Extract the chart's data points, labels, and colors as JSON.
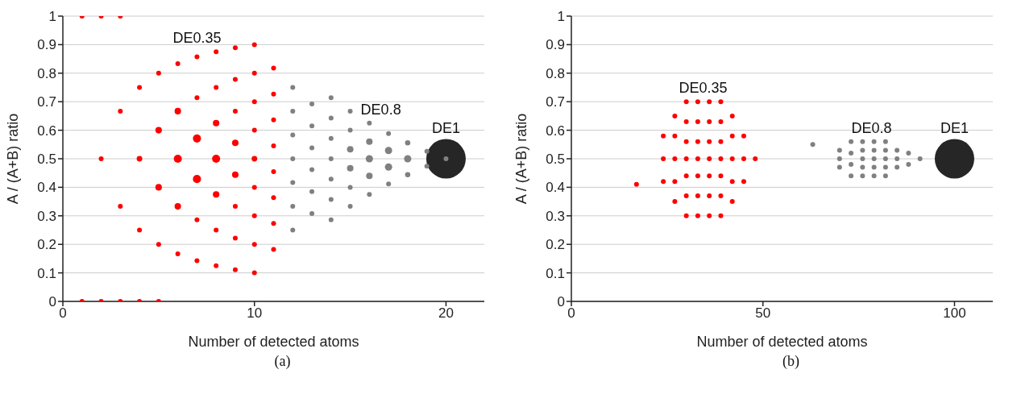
{
  "chart_data": [
    {
      "type": "bubble",
      "xlabel": "Number of detected atoms",
      "ylabel": "A / (A+B) ratio",
      "annotations": [
        "(a)"
      ],
      "xlim": [
        0,
        22
      ],
      "xticks": [
        0,
        10,
        20
      ],
      "ylim": [
        0,
        1
      ],
      "yticks": [
        0,
        0.1,
        0.2,
        0.3,
        0.4,
        0.5,
        0.6,
        0.7,
        0.8,
        0.9,
        1
      ],
      "grid": "y",
      "series": [
        {
          "name": "DE0.35",
          "color": "#ff0000",
          "x": [
            1,
            1,
            2,
            2,
            2,
            3,
            3,
            3,
            3,
            4,
            4,
            4,
            4,
            5,
            5,
            5,
            5,
            5,
            6,
            6,
            6,
            6,
            6,
            7,
            7,
            7,
            7,
            7,
            7,
            8,
            8,
            8,
            8,
            8,
            8,
            8,
            9,
            9,
            9,
            9,
            9,
            9,
            9,
            9,
            10,
            10,
            10,
            10,
            10,
            10,
            10,
            10,
            10,
            11,
            11,
            11,
            11,
            11,
            11,
            11,
            11
          ],
          "values": [
            0,
            1,
            0,
            0.5,
            1,
            0,
            0.333,
            0.667,
            1,
            0,
            0.25,
            0.5,
            0.75,
            0,
            0.2,
            0.4,
            0.6,
            0.8,
            0.167,
            0.333,
            0.5,
            0.667,
            0.833,
            0.143,
            0.286,
            0.429,
            0.571,
            0.714,
            0.857,
            0.125,
            0.25,
            0.375,
            0.5,
            0.625,
            0.75,
            0.875,
            0.111,
            0.222,
            0.333,
            0.444,
            0.556,
            0.667,
            0.778,
            0.889,
            0.1,
            0.2,
            0.3,
            0.4,
            0.5,
            0.6,
            0.7,
            0.8,
            0.9,
            0.182,
            0.273,
            0.364,
            0.455,
            0.545,
            0.636,
            0.727,
            0.818
          ],
          "sizes": [
            0.015,
            0.015,
            0.015,
            0.015,
            0.015,
            0.015,
            0.015,
            0.015,
            0.015,
            0.015,
            0.015,
            0.02,
            0.015,
            0.015,
            0.015,
            0.027,
            0.027,
            0.015,
            0.015,
            0.027,
            0.042,
            0.027,
            0.015,
            0.015,
            0.015,
            0.042,
            0.042,
            0.015,
            0.015,
            0.015,
            0.015,
            0.027,
            0.042,
            0.027,
            0.015,
            0.015,
            0.015,
            0.015,
            0.015,
            0.027,
            0.027,
            0.015,
            0.015,
            0.015,
            0.015,
            0.015,
            0.015,
            0.015,
            0.02,
            0.015,
            0.015,
            0.015,
            0.015,
            0.015,
            0.015,
            0.015,
            0.015,
            0.015,
            0.015,
            0.015,
            0.015
          ]
        },
        {
          "name": "DE1",
          "color": "#262626",
          "x": [
            20
          ],
          "values": [
            0.5
          ],
          "sizes": [
            1
          ]
        },
        {
          "name": "DE0.8",
          "color": "#808080",
          "x": [
            12,
            12,
            12,
            12,
            12,
            12,
            12,
            13,
            13,
            13,
            13,
            13,
            13,
            14,
            14,
            14,
            14,
            14,
            14,
            14,
            15,
            15,
            15,
            15,
            15,
            15,
            16,
            16,
            16,
            16,
            16,
            17,
            17,
            17,
            17,
            18,
            18,
            18,
            19,
            19,
            20
          ],
          "values": [
            0.75,
            0.667,
            0.583,
            0.5,
            0.417,
            0.333,
            0.25,
            0.692,
            0.615,
            0.538,
            0.462,
            0.385,
            0.308,
            0.714,
            0.643,
            0.571,
            0.5,
            0.429,
            0.357,
            0.286,
            0.667,
            0.6,
            0.533,
            0.467,
            0.4,
            0.333,
            0.625,
            0.56,
            0.5,
            0.44,
            0.375,
            0.588,
            0.529,
            0.471,
            0.412,
            0.556,
            0.5,
            0.444,
            0.526,
            0.474,
            0.5
          ],
          "sizes": [
            0.015,
            0.015,
            0.015,
            0.015,
            0.015,
            0.015,
            0.015,
            0.015,
            0.015,
            0.015,
            0.015,
            0.015,
            0.015,
            0.015,
            0.015,
            0.015,
            0.015,
            0.015,
            0.015,
            0.015,
            0.015,
            0.015,
            0.027,
            0.027,
            0.015,
            0.015,
            0.015,
            0.027,
            0.034,
            0.027,
            0.015,
            0.015,
            0.034,
            0.034,
            0.015,
            0.018,
            0.034,
            0.018,
            0.015,
            0.015,
            0.015
          ]
        }
      ]
    },
    {
      "type": "bubble",
      "xlabel": "Number of detected atoms",
      "ylabel": "A / (A+B) ratio",
      "annotations": [
        "(b)"
      ],
      "xlim": [
        0,
        110
      ],
      "xticks": [
        0,
        50,
        100
      ],
      "ylim": [
        0,
        1
      ],
      "yticks": [
        0,
        0.1,
        0.2,
        0.3,
        0.4,
        0.5,
        0.6,
        0.7,
        0.8,
        0.9,
        1
      ],
      "grid": "y",
      "series": [
        {
          "name": "DE0.35",
          "color": "#ff0000",
          "x": [
            17,
            24,
            24,
            24,
            27,
            27,
            27,
            27,
            27,
            30,
            30,
            30,
            30,
            30,
            30,
            30,
            33,
            33,
            33,
            33,
            33,
            33,
            33,
            36,
            36,
            36,
            36,
            36,
            36,
            36,
            39,
            39,
            39,
            39,
            39,
            39,
            39,
            42,
            42,
            42,
            42,
            42,
            45,
            45,
            45,
            48
          ],
          "values": [
            0.41,
            0.42,
            0.5,
            0.58,
            0.35,
            0.42,
            0.5,
            0.58,
            0.65,
            0.3,
            0.37,
            0.44,
            0.5,
            0.56,
            0.63,
            0.7,
            0.3,
            0.37,
            0.44,
            0.5,
            0.56,
            0.63,
            0.7,
            0.3,
            0.37,
            0.44,
            0.5,
            0.56,
            0.63,
            0.7,
            0.3,
            0.37,
            0.44,
            0.5,
            0.56,
            0.63,
            0.7,
            0.35,
            0.42,
            0.5,
            0.58,
            0.65,
            0.42,
            0.5,
            0.58,
            0.5
          ],
          "sizes": [
            0.015,
            0.015,
            0.015,
            0.015,
            0.015,
            0.015,
            0.015,
            0.015,
            0.015,
            0.015,
            0.015,
            0.015,
            0.015,
            0.015,
            0.015,
            0.015,
            0.015,
            0.015,
            0.015,
            0.015,
            0.015,
            0.015,
            0.015,
            0.015,
            0.015,
            0.015,
            0.015,
            0.015,
            0.015,
            0.015,
            0.015,
            0.015,
            0.015,
            0.015,
            0.015,
            0.015,
            0.015,
            0.015,
            0.015,
            0.015,
            0.015,
            0.015,
            0.015,
            0.015,
            0.015,
            0.015
          ]
        },
        {
          "name": "DE0.8",
          "color": "#808080",
          "x": [
            63,
            70,
            70,
            70,
            73,
            73,
            73,
            73,
            76,
            76,
            76,
            76,
            76,
            79,
            79,
            79,
            79,
            79,
            82,
            82,
            82,
            82,
            82,
            85,
            85,
            85,
            88,
            88,
            91
          ],
          "values": [
            0.55,
            0.47,
            0.5,
            0.53,
            0.44,
            0.48,
            0.52,
            0.56,
            0.44,
            0.47,
            0.5,
            0.53,
            0.56,
            0.44,
            0.47,
            0.5,
            0.53,
            0.56,
            0.44,
            0.47,
            0.5,
            0.53,
            0.56,
            0.47,
            0.5,
            0.53,
            0.48,
            0.52,
            0.5
          ],
          "sizes": [
            0.015,
            0.015,
            0.015,
            0.015,
            0.015,
            0.015,
            0.015,
            0.015,
            0.015,
            0.015,
            0.015,
            0.015,
            0.015,
            0.015,
            0.015,
            0.015,
            0.015,
            0.015,
            0.015,
            0.015,
            0.015,
            0.015,
            0.015,
            0.015,
            0.015,
            0.015,
            0.015,
            0.015,
            0.015
          ]
        },
        {
          "name": "DE1",
          "color": "#262626",
          "x": [
            100
          ],
          "values": [
            0.5
          ],
          "sizes": [
            1
          ]
        }
      ]
    }
  ]
}
